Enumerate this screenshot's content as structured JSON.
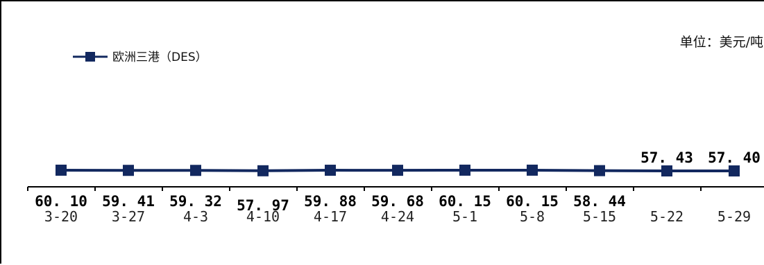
{
  "chart_data": {
    "type": "line",
    "unit_label": "单位：美元/吨",
    "categories": [
      "3-20",
      "3-27",
      "4-3",
      "4-10",
      "4-17",
      "4-24",
      "5-1",
      "5-8",
      "5-15",
      "5-22",
      "5-29"
    ],
    "series": [
      {
        "name": "欧洲三港（DES）",
        "values": [
          60.1,
          59.41,
          59.32,
          57.97,
          59.88,
          59.68,
          60.15,
          60.15,
          58.44,
          57.43,
          57.4
        ],
        "value_labels": [
          "60. 10",
          "59. 41",
          "59. 32",
          "57. 97",
          "59. 88",
          "59. 68",
          "60. 15",
          "60. 15",
          "58. 44",
          "57. 43",
          "57. 40"
        ]
      }
    ],
    "ylim": [
      0,
      600
    ],
    "legend_position": "top-left",
    "grid": false,
    "colors": {
      "series": "#12285f",
      "axis": "#000000"
    },
    "marker": "square"
  }
}
